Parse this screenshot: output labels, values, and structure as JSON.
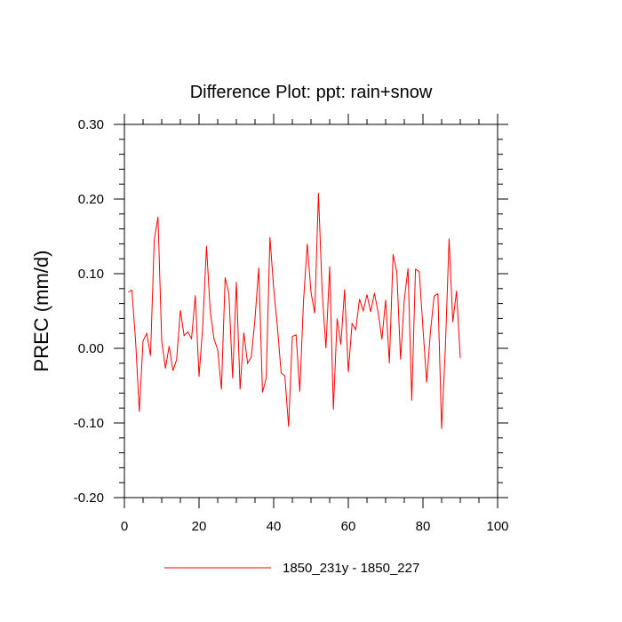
{
  "chart_data": {
    "type": "line",
    "title": "Difference Plot: ppt: rain+snow",
    "xlabel": "",
    "ylabel": "PREC  (mm/d)",
    "xlim": [
      0,
      100
    ],
    "ylim": [
      -0.2,
      0.3
    ],
    "xticks": [
      0,
      20,
      40,
      60,
      80,
      100
    ],
    "xtick_labels": [
      "0",
      "20",
      "40",
      "60",
      "80",
      "100"
    ],
    "yticks": [
      -0.2,
      -0.1,
      0.0,
      0.1,
      0.2,
      0.3
    ],
    "ytick_labels": [
      "-0.20",
      "-0.10",
      "0.00",
      "0.10",
      "0.20",
      "0.30"
    ],
    "grid": false,
    "legend_position": "bottom-center",
    "series": [
      {
        "name": "1850_231y - 1850_227",
        "color": "#ff0000",
        "x": [
          1,
          2,
          3,
          4,
          5,
          6,
          7,
          8,
          9,
          10,
          11,
          12,
          13,
          14,
          15,
          16,
          17,
          18,
          19,
          20,
          21,
          22,
          23,
          24,
          25,
          26,
          27,
          28,
          29,
          30,
          31,
          32,
          33,
          34,
          35,
          36,
          37,
          38,
          39,
          40,
          41,
          42,
          43,
          44,
          45,
          46,
          47,
          48,
          49,
          50,
          51,
          52,
          53,
          54,
          55,
          56,
          57,
          58,
          59,
          60,
          61,
          62,
          63,
          64,
          65,
          66,
          67,
          68,
          69,
          70,
          71,
          72,
          73,
          74,
          75,
          76,
          77,
          78,
          79,
          80,
          81,
          82,
          83,
          84,
          85,
          86,
          87,
          88,
          89,
          90
        ],
        "values": [
          0.075,
          0.078,
          0.01,
          -0.085,
          0.01,
          0.02,
          -0.01,
          0.145,
          0.176,
          0.01,
          -0.027,
          0.003,
          -0.03,
          -0.015,
          0.051,
          0.017,
          0.022,
          0.013,
          0.071,
          -0.038,
          0.03,
          0.137,
          0.05,
          0.013,
          -0.002,
          -0.055,
          0.095,
          0.073,
          -0.04,
          0.089,
          -0.055,
          0.021,
          -0.02,
          -0.012,
          0.04,
          0.108,
          -0.059,
          -0.04,
          0.149,
          0.08,
          0.029,
          -0.033,
          -0.037,
          -0.105,
          0.016,
          0.018,
          -0.058,
          0.064,
          0.14,
          0.075,
          0.047,
          0.208,
          0.075,
          0.0,
          0.11,
          -0.082,
          0.04,
          0.005,
          0.079,
          -0.032,
          0.033,
          0.025,
          0.066,
          0.05,
          0.072,
          0.049,
          0.074,
          0.048,
          0.012,
          0.065,
          -0.02,
          0.126,
          0.102,
          -0.015,
          0.065,
          0.107,
          -0.07,
          0.106,
          0.103,
          0.027,
          -0.046,
          0.022,
          0.07,
          0.073,
          -0.108,
          0.0,
          0.147,
          0.035,
          0.077,
          -0.013
        ]
      }
    ]
  }
}
